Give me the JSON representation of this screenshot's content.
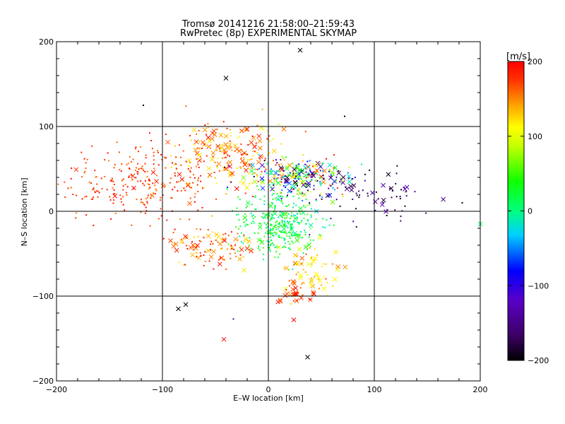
{
  "chart_data": {
    "type": "scatter",
    "title": "Tromsø 20141216 21:58:00–21:59:43",
    "subtitle": "RwPretec (8p) EXPERIMENTAL SKYMAP",
    "xlabel": "E–W location [km]",
    "ylabel": "N–S location [km]",
    "xlim": [
      -200,
      200
    ],
    "ylim": [
      -200,
      200
    ],
    "xticks": [
      -200,
      -100,
      0,
      100,
      200
    ],
    "yticks": [
      -200,
      -100,
      0,
      100,
      200
    ],
    "grid": true,
    "colorbar": {
      "label": "[m/s]",
      "range": [
        -200,
        200
      ],
      "ticks": [
        -200,
        -100,
        0,
        100,
        200
      ],
      "colormap": "black-purple-blue-cyan-green-yellow-orange-red"
    },
    "marker_types": [
      "dot",
      "x"
    ],
    "clusters": [
      {
        "name": "western-red-cloud",
        "cx": -120,
        "cy": 35,
        "sx": 38,
        "sy": 24,
        "n": 260,
        "vmin": 150,
        "vmax": 200,
        "xfrac": 0.03
      },
      {
        "name": "north-west-red",
        "cx": -40,
        "cy": 70,
        "sx": 25,
        "sy": 18,
        "n": 200,
        "vmin": 110,
        "vmax": 200,
        "xfrac": 0.35
      },
      {
        "name": "north-east-band",
        "cx": 30,
        "cy": 40,
        "sx": 28,
        "sy": 12,
        "n": 280,
        "vmin": -200,
        "vmax": 200,
        "xfrac": 0.3
      },
      {
        "name": "far-east-sparse",
        "cx": 100,
        "cy": 20,
        "sx": 30,
        "sy": 20,
        "n": 70,
        "vmin": -200,
        "vmax": -120,
        "xfrac": 0.3
      },
      {
        "name": "central-cyan-green",
        "cx": 10,
        "cy": -15,
        "sx": 18,
        "sy": 18,
        "n": 340,
        "vmin": -20,
        "vmax": 60,
        "xfrac": 0.08
      },
      {
        "name": "south-west-red",
        "cx": -55,
        "cy": -40,
        "sx": 22,
        "sy": 12,
        "n": 110,
        "vmin": 120,
        "vmax": 200,
        "xfrac": 0.35
      },
      {
        "name": "south-east-orange",
        "cx": 38,
        "cy": -70,
        "sx": 14,
        "sy": 15,
        "n": 80,
        "vmin": 100,
        "vmax": 170,
        "xfrac": 0.45
      },
      {
        "name": "south-red",
        "cx": 28,
        "cy": -97,
        "sx": 10,
        "sy": 6,
        "n": 25,
        "vmin": 160,
        "vmax": 200,
        "xfrac": 0.6
      }
    ],
    "notable_points": [
      {
        "x": 30,
        "y": 190,
        "v": -200,
        "m": "x"
      },
      {
        "x": -40,
        "y": 157,
        "v": -200,
        "m": "x"
      },
      {
        "x": -85,
        "y": -115,
        "v": -200,
        "m": "x"
      },
      {
        "x": -78,
        "y": -110,
        "v": -200,
        "m": "x"
      },
      {
        "x": 37,
        "y": -172,
        "v": -200,
        "m": "x"
      },
      {
        "x": -42,
        "y": -151,
        "v": 200,
        "m": "x"
      },
      {
        "x": 24,
        "y": -128,
        "v": 200,
        "m": "x"
      },
      {
        "x": -33,
        "y": -127,
        "v": -130,
        "m": "dot"
      },
      {
        "x": 183,
        "y": 10,
        "v": -200,
        "m": "dot"
      },
      {
        "x": 200,
        "y": -15,
        "v": 10,
        "m": "x"
      },
      {
        "x": -118,
        "y": 125,
        "v": -200,
        "m": "dot"
      },
      {
        "x": 72,
        "y": 112,
        "v": -200,
        "m": "dot"
      }
    ]
  }
}
